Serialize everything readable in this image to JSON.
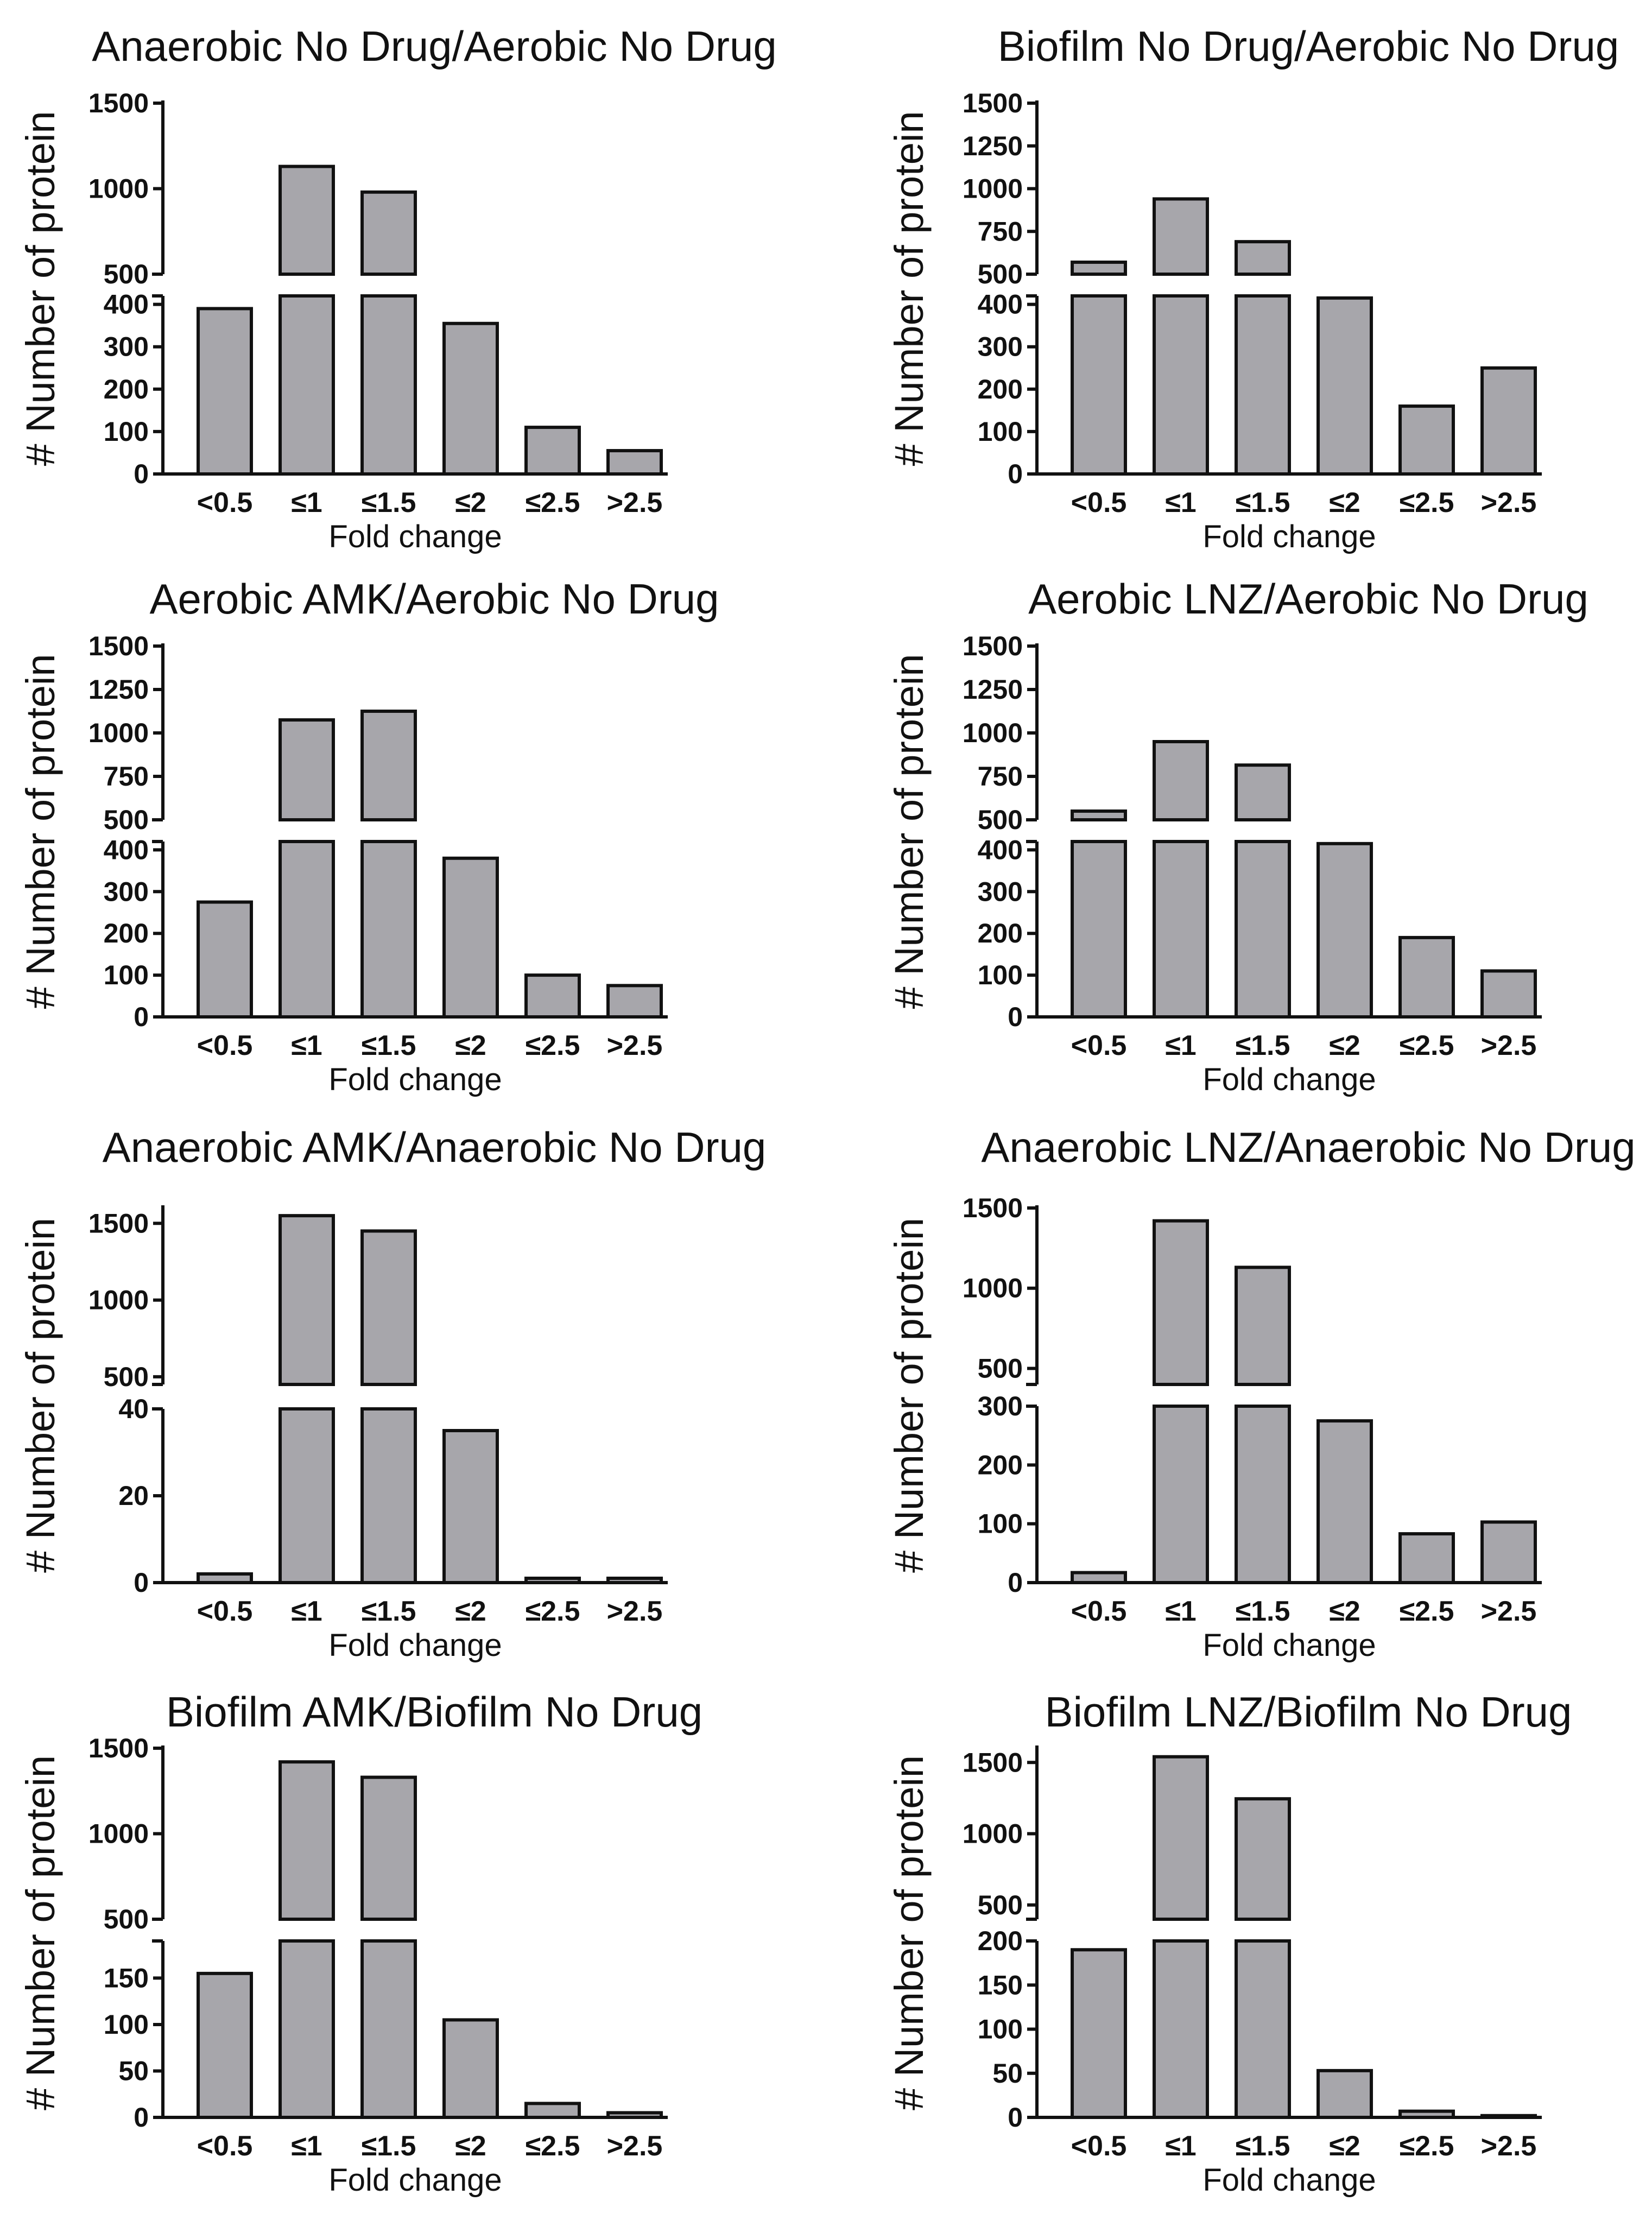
{
  "colors": {
    "bar_fill": "#a7a6ab",
    "bar_stroke": "#111111",
    "axis": "#111111",
    "background": "#ffffff"
  },
  "chart_data": [
    {
      "type": "bar",
      "title": "Anaerobic No Drug/Aerobic No Drug",
      "xlabel": "Fold change",
      "ylabel": "# Number of protein",
      "categories": [
        "<0.5",
        "≤1",
        "≤1.5",
        "≤2",
        "≤2.5",
        ">2.5"
      ],
      "values": [
        390,
        1130,
        980,
        355,
        110,
        55
      ],
      "lower_range": [
        0,
        420
      ],
      "upper_range": [
        500,
        1500
      ],
      "lower_ticks": [
        "0",
        "100",
        "200",
        "300",
        "400"
      ],
      "upper_ticks": [
        "500",
        "1000",
        "1500"
      ],
      "lower_tick_values": [
        0,
        100,
        200,
        300,
        400
      ],
      "upper_tick_values": [
        500,
        1000,
        1500
      ]
    },
    {
      "type": "bar",
      "title": "Biofilm No Drug/Aerobic No Drug",
      "xlabel": "Fold change",
      "ylabel": "# Number of protein",
      "categories": [
        "<0.5",
        "≤1",
        "≤1.5",
        "≤2",
        "≤2.5",
        ">2.5"
      ],
      "values": [
        570,
        940,
        690,
        415,
        160,
        250
      ],
      "lower_range": [
        0,
        420
      ],
      "upper_range": [
        500,
        1500
      ],
      "lower_ticks": [
        "0",
        "100",
        "200",
        "300",
        "400"
      ],
      "upper_ticks": [
        "500",
        "750",
        "1000",
        "1250",
        "1500"
      ],
      "lower_tick_values": [
        0,
        100,
        200,
        300,
        400
      ],
      "upper_tick_values": [
        500,
        750,
        1000,
        1250,
        1500
      ]
    },
    {
      "type": "bar",
      "title": "Aerobic AMK/Aerobic No Drug",
      "xlabel": "Fold change",
      "ylabel": "# Number of protein",
      "categories": [
        "<0.5",
        "≤1",
        "≤1.5",
        "≤2",
        "≤2.5",
        ">2.5"
      ],
      "values": [
        275,
        1075,
        1125,
        380,
        100,
        75
      ],
      "lower_range": [
        0,
        420
      ],
      "upper_range": [
        500,
        1500
      ],
      "lower_ticks": [
        "0",
        "100",
        "200",
        "300",
        "400"
      ],
      "upper_ticks": [
        "500",
        "750",
        "1000",
        "1250",
        "1500"
      ],
      "lower_tick_values": [
        0,
        100,
        200,
        300,
        400
      ],
      "upper_tick_values": [
        500,
        750,
        1000,
        1250,
        1500
      ]
    },
    {
      "type": "bar",
      "title": "Aerobic LNZ/Aerobic No Drug",
      "xlabel": "Fold change",
      "ylabel": "# Number of protein",
      "categories": [
        "<0.5",
        "≤1",
        "≤1.5",
        "≤2",
        "≤2.5",
        ">2.5"
      ],
      "values": [
        550,
        950,
        815,
        415,
        190,
        110
      ],
      "lower_range": [
        0,
        420
      ],
      "upper_range": [
        500,
        1500
      ],
      "lower_ticks": [
        "0",
        "100",
        "200",
        "300",
        "400"
      ],
      "upper_ticks": [
        "500",
        "750",
        "1000",
        "1250",
        "1500"
      ],
      "lower_tick_values": [
        0,
        100,
        200,
        300,
        400
      ],
      "upper_tick_values": [
        500,
        750,
        1000,
        1250,
        1500
      ]
    },
    {
      "type": "bar",
      "title": "Anaerobic AMK/Anaerobic No Drug",
      "xlabel": "Fold change",
      "ylabel": "# Number of protein",
      "categories": [
        "<0.5",
        "≤1",
        "≤1.5",
        "≤2",
        "≤2.5",
        ">2.5"
      ],
      "values": [
        2,
        1550,
        1450,
        35,
        1,
        1
      ],
      "lower_range": [
        0,
        40
      ],
      "upper_range": [
        450,
        1600
      ],
      "lower_ticks": [
        "0",
        "20",
        "40"
      ],
      "upper_ticks": [
        "500",
        "1000",
        "1500"
      ],
      "lower_tick_values": [
        0,
        20,
        40
      ],
      "upper_tick_values": [
        500,
        1000,
        1500
      ]
    },
    {
      "type": "bar",
      "title": "Anaerobic LNZ/Anaerobic No Drug",
      "xlabel": "Fold change",
      "ylabel": "# Number of protein",
      "categories": [
        "<0.5",
        "≤1",
        "≤1.5",
        "≤2",
        "≤2.5",
        ">2.5"
      ],
      "values": [
        17,
        1420,
        1130,
        275,
        83,
        103
      ],
      "lower_range": [
        0,
        300
      ],
      "upper_range": [
        400,
        1500
      ],
      "lower_ticks": [
        "0",
        "100",
        "200",
        "300"
      ],
      "upper_ticks": [
        "500",
        "1000",
        "1500"
      ],
      "lower_tick_values": [
        0,
        100,
        200,
        300
      ],
      "upper_tick_values": [
        500,
        1000,
        1500
      ]
    },
    {
      "type": "bar",
      "title": "Biofilm AMK/Biofilm No Drug",
      "xlabel": "Fold change",
      "ylabel": "# Number of protein",
      "categories": [
        "<0.5",
        "≤1",
        "≤1.5",
        "≤2",
        "≤2.5",
        ">2.5"
      ],
      "values": [
        155,
        1420,
        1330,
        105,
        15,
        5
      ],
      "lower_range": [
        0,
        190
      ],
      "upper_range": [
        500,
        1500
      ],
      "lower_ticks": [
        "0",
        "50",
        "100",
        "150"
      ],
      "upper_ticks": [
        "500",
        "1000",
        "1500"
      ],
      "lower_tick_values": [
        0,
        50,
        100,
        150
      ],
      "upper_tick_values": [
        500,
        1000,
        1500
      ]
    },
    {
      "type": "bar",
      "title": "Biofilm LNZ/Biofilm No Drug",
      "xlabel": "Fold change",
      "ylabel": "# Number of protein",
      "categories": [
        "<0.5",
        "≤1",
        "≤1.5",
        "≤2",
        "≤2.5",
        ">2.5"
      ],
      "values": [
        190,
        1540,
        1245,
        53,
        7,
        2
      ],
      "lower_range": [
        0,
        200
      ],
      "upper_range": [
        400,
        1600
      ],
      "lower_ticks": [
        "0",
        "50",
        "100",
        "150",
        "200"
      ],
      "upper_ticks": [
        "500",
        "1000",
        "1500"
      ],
      "lower_tick_values": [
        0,
        50,
        100,
        150,
        200
      ],
      "upper_tick_values": [
        500,
        1000,
        1500
      ]
    }
  ]
}
